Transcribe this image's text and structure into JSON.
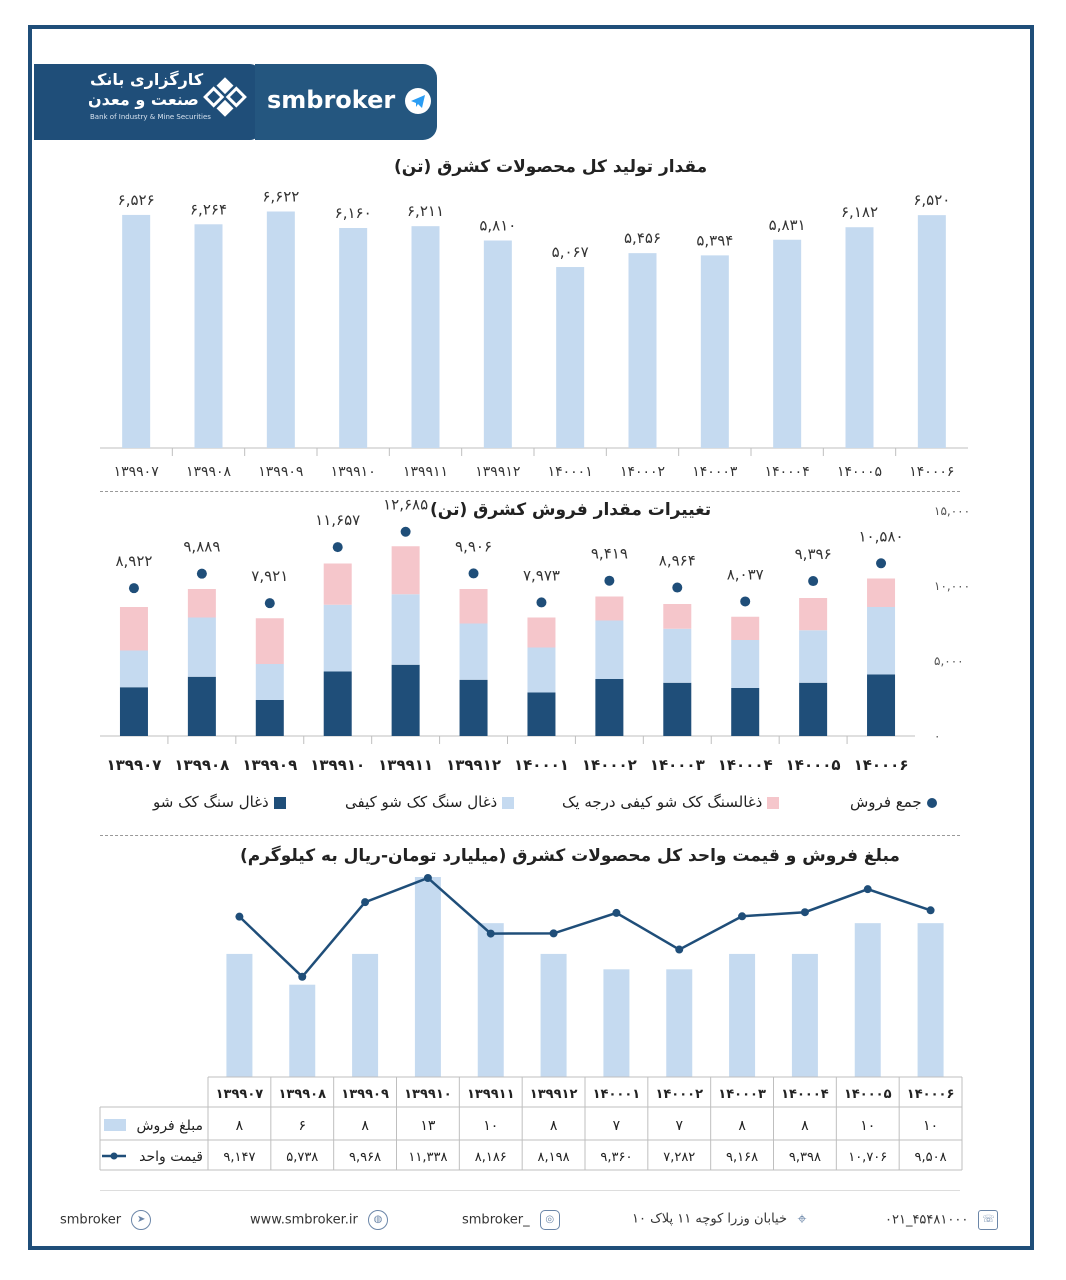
{
  "header": {
    "logo_line1": "کارگزاری بانک",
    "logo_line2": "صنعت و معدن",
    "logo_sub": "Bank of Industry & Mine Securities",
    "brand": "smbroker",
    "brand_icon": "telegram-icon"
  },
  "chart_data": [
    {
      "type": "bar",
      "title": "مقدار تولید کل محصولات کشرق (تن)",
      "categories": [
        "۱۳۹۹۰۷",
        "۱۳۹۹۰۸",
        "۱۳۹۹۰۹",
        "۱۳۹۹۱۰",
        "۱۳۹۹۱۱",
        "۱۳۹۹۱۲",
        "۱۴۰۰۰۱",
        "۱۴۰۰۰۲",
        "۱۴۰۰۰۳",
        "۱۴۰۰۰۴",
        "۱۴۰۰۰۵",
        "۱۴۰۰۰۶"
      ],
      "values": [
        6526,
        6264,
        6622,
        6160,
        6211,
        5810,
        5067,
        5456,
        5394,
        5831,
        6182,
        6520
      ],
      "labels": [
        "۶,۵۲۶",
        "۶,۲۶۴",
        "۶,۶۲۲",
        "۶,۱۶۰",
        "۶,۲۱۱",
        "۵,۸۱۰",
        "۵,۰۶۷",
        "۵,۴۵۶",
        "۵,۳۹۴",
        "۵,۸۳۱",
        "۶,۱۸۲",
        "۶,۵۲۰"
      ],
      "color": "#c5daf0"
    },
    {
      "type": "bar",
      "stacked": true,
      "title": "تغییرات مقدار فروش کشرق (تن)",
      "categories": [
        "۱۳۹۹۰۷",
        "۱۳۹۹۰۸",
        "۱۳۹۹۰۹",
        "۱۳۹۹۱۰",
        "۱۳۹۹۱۱",
        "۱۳۹۹۱۲",
        "۱۴۰۰۰۱",
        "۱۴۰۰۰۲",
        "۱۴۰۰۰۳",
        "۱۴۰۰۰۴",
        "۱۴۰۰۰۵",
        "۱۴۰۰۰۶"
      ],
      "ylim": [
        0,
        15000
      ],
      "yticks": [
        0,
        5000,
        10000,
        15000
      ],
      "ytick_labels": [
        "۰",
        "۵,۰۰۰",
        "۱۰,۰۰۰",
        "۱۵,۰۰۰"
      ],
      "series": [
        {
          "name": "ذغال سنگ کک شو",
          "color": "#1f4e79",
          "values": [
            3250,
            3950,
            2400,
            4300,
            4750,
            3750,
            2900,
            3800,
            3550,
            3200,
            3550,
            4100
          ]
        },
        {
          "name": "ذغال سنگ کک شو کیفی",
          "color": "#c5daf0",
          "values": [
            2450,
            3950,
            2400,
            4450,
            4700,
            3750,
            3000,
            3900,
            3600,
            3200,
            3500,
            4500
          ]
        },
        {
          "name": "ذغالسنگ کک شو کیفی درجه یک",
          "color": "#f5c6cb",
          "values": [
            2900,
            1900,
            3050,
            2750,
            3200,
            2300,
            2000,
            1600,
            1650,
            1550,
            2150,
            1900
          ]
        }
      ],
      "total_series": {
        "name": "جمع فروش",
        "color": "#1f4e79",
        "values": [
          8922,
          9889,
          7921,
          11657,
          12685,
          9906,
          7973,
          9419,
          8964,
          8037,
          9396,
          10580
        ],
        "labels": [
          "۸,۹۲۲",
          "۹,۸۸۹",
          "۷,۹۲۱",
          "۱۱,۶۵۷",
          "۱۲,۶۸۵",
          "۹,۹۰۶",
          "۷,۹۷۳",
          "۹,۴۱۹",
          "۸,۹۶۴",
          "۸,۰۳۷",
          "۹,۳۹۶",
          "۱۰,۵۸۰"
        ]
      },
      "legend_position": "bottom"
    },
    {
      "type": "bar+line",
      "title": "مبلغ فروش و قیمت واحد کل محصولات کشرق (میلیارد تومان-ریال به کیلوگرم)",
      "categories": [
        "۱۳۹۹۰۷",
        "۱۳۹۹۰۸",
        "۱۳۹۹۰۹",
        "۱۳۹۹۱۰",
        "۱۳۹۹۱۱",
        "۱۳۹۹۱۲",
        "۱۴۰۰۰۱",
        "۱۴۰۰۰۲",
        "۱۴۰۰۰۳",
        "۱۴۰۰۰۴",
        "۱۴۰۰۰۵",
        "۱۴۰۰۰۶"
      ],
      "series": [
        {
          "name": "مبلغ فروش",
          "type": "bar",
          "color": "#c5daf0",
          "values": [
            8,
            6,
            8,
            13,
            10,
            8,
            7,
            7,
            8,
            8,
            10,
            10
          ],
          "labels": [
            "۸",
            "۶",
            "۸",
            "۱۳",
            "۱۰",
            "۸",
            "۷",
            "۷",
            "۸",
            "۸",
            "۱۰",
            "۱۰"
          ]
        },
        {
          "name": "قیمت واحد",
          "type": "line",
          "color": "#1f4e79",
          "values": [
            9147,
            5738,
            9968,
            11338,
            8186,
            8198,
            9360,
            7282,
            9168,
            9398,
            10706,
            9508
          ],
          "labels": [
            "۹,۱۴۷",
            "۵,۷۳۸",
            "۹,۹۶۸",
            "۱۱,۳۳۸",
            "۸,۱۸۶",
            "۸,۱۹۸",
            "۹,۳۶۰",
            "۷,۲۸۲",
            "۹,۱۶۸",
            "۹,۳۹۸",
            "۱۰,۷۰۶",
            "۹,۵۰۸"
          ]
        }
      ]
    }
  ],
  "footer": {
    "telegram": "smbroker",
    "website": "www.smbroker.ir",
    "instagram": "smbroker_",
    "address": "خیابان وزرا کوچه ۱۱ پلاک ۱۰",
    "phone": "۰۲۱_۴۵۴۸۱۰۰۰"
  }
}
